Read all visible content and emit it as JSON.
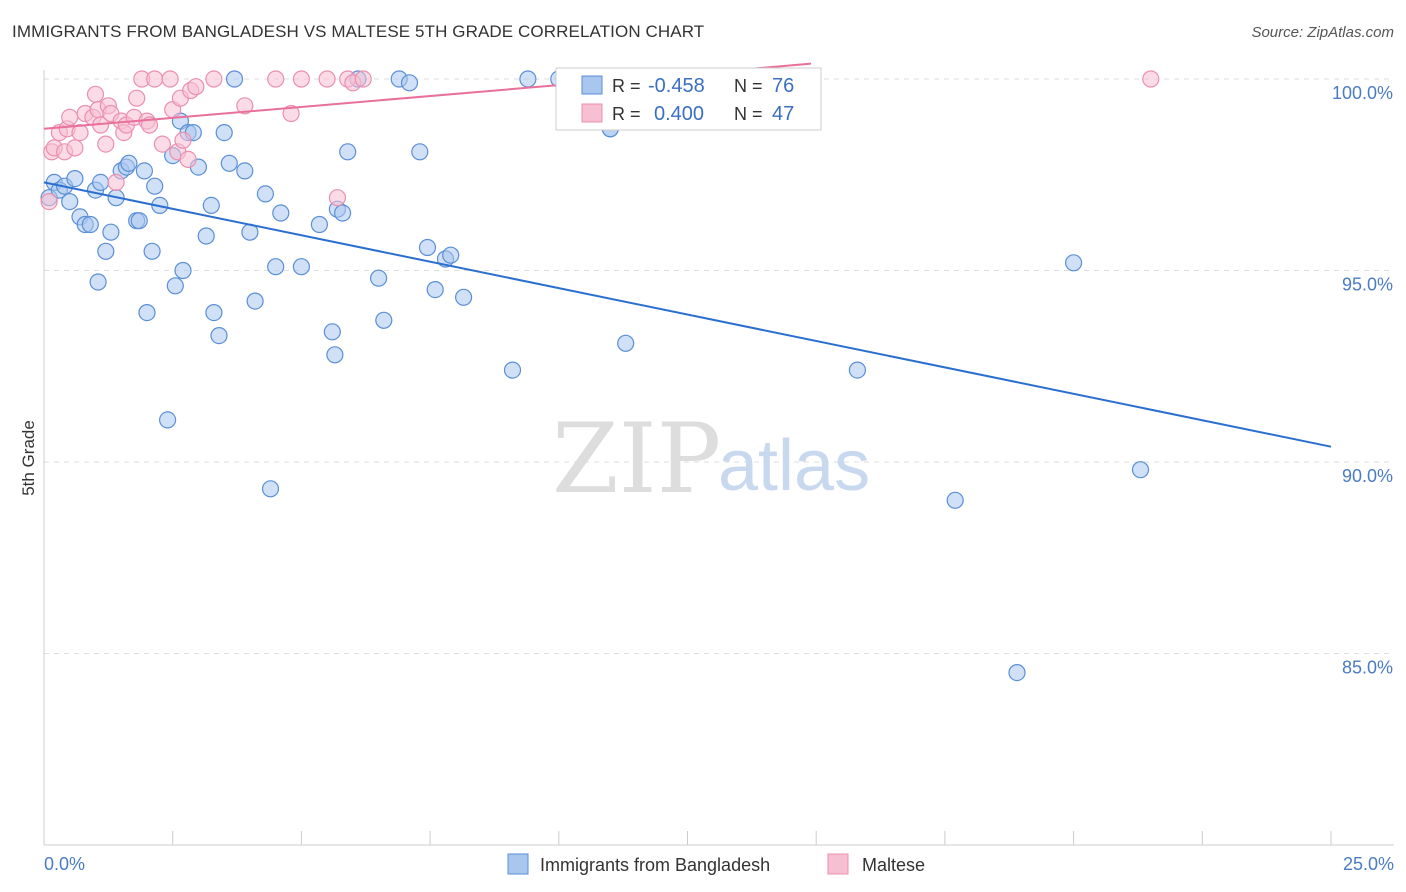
{
  "header": {
    "title": "IMMIGRANTS FROM BANGLADESH VS MALTESE 5TH GRADE CORRELATION CHART",
    "source": "Source: ZipAtlas.com"
  },
  "watermark": {
    "zip": "ZIP",
    "atlas": "atlas"
  },
  "colors": {
    "blue_fill": "#a9c6ee",
    "blue_stroke": "#5b8fd6",
    "blue_line": "#2a6fd0",
    "pink_fill": "#f7bfd2",
    "pink_stroke": "#eb8fb0",
    "pink_line": "#e8709a",
    "grid": "#dddddd",
    "tick_label": "#4a7cc4"
  },
  "stats_box": {
    "rows": [
      {
        "r_label": "R =",
        "r_value": "-0.458",
        "n_label": "N =",
        "n_value": "76"
      },
      {
        "r_label": "R =",
        "r_value": "0.400",
        "n_label": "N =",
        "n_value": "47"
      }
    ]
  },
  "chart_data": {
    "type": "scatter",
    "title": "IMMIGRANTS FROM BANGLADESH VS MALTESE 5TH GRADE CORRELATION CHART",
    "xlabel": "",
    "ylabel": "5th Grade",
    "xlim": [
      0,
      25
    ],
    "ylim": [
      80.5,
      100.8
    ],
    "x_tick_labels": [
      "0.0%",
      "25.0%"
    ],
    "y_ticks": [
      85,
      90,
      95,
      100
    ],
    "y_tick_labels": [
      "85.0%",
      "90.0%",
      "95.0%",
      "100.0%"
    ],
    "legend": [
      "Immigrants from Bangladesh",
      "Maltese"
    ],
    "series": [
      {
        "name": "Immigrants from Bangladesh",
        "color": "#5b8fd6",
        "trend": {
          "x": [
            0,
            25
          ],
          "y": [
            97.3,
            90.4
          ]
        },
        "points": [
          [
            0.1,
            96.9
          ],
          [
            0.2,
            97.3
          ],
          [
            0.3,
            97.1
          ],
          [
            0.4,
            97.2
          ],
          [
            0.5,
            96.8
          ],
          [
            0.6,
            97.4
          ],
          [
            0.7,
            96.4
          ],
          [
            0.8,
            96.2
          ],
          [
            0.9,
            96.2
          ],
          [
            1.0,
            97.1
          ],
          [
            1.05,
            94.7
          ],
          [
            1.1,
            97.3
          ],
          [
            1.2,
            95.5
          ],
          [
            1.3,
            96.0
          ],
          [
            1.4,
            96.9
          ],
          [
            1.5,
            97.6
          ],
          [
            1.6,
            97.7
          ],
          [
            1.65,
            97.8
          ],
          [
            1.8,
            96.3
          ],
          [
            1.85,
            96.3
          ],
          [
            1.95,
            97.6
          ],
          [
            2.0,
            93.9
          ],
          [
            2.1,
            95.5
          ],
          [
            2.15,
            97.2
          ],
          [
            2.25,
            96.7
          ],
          [
            2.4,
            91.1
          ],
          [
            2.5,
            98.0
          ],
          [
            2.55,
            94.6
          ],
          [
            2.65,
            98.9
          ],
          [
            2.7,
            95.0
          ],
          [
            2.8,
            98.6
          ],
          [
            2.9,
            98.6
          ],
          [
            3.0,
            97.7
          ],
          [
            3.15,
            95.9
          ],
          [
            3.25,
            96.7
          ],
          [
            3.3,
            93.9
          ],
          [
            3.4,
            93.3
          ],
          [
            3.5,
            98.6
          ],
          [
            3.6,
            97.8
          ],
          [
            3.9,
            97.6
          ],
          [
            4.0,
            96.0
          ],
          [
            4.1,
            94.2
          ],
          [
            4.3,
            97.0
          ],
          [
            4.4,
            89.3
          ],
          [
            4.5,
            95.1
          ],
          [
            4.6,
            96.5
          ],
          [
            5.0,
            95.1
          ],
          [
            5.35,
            96.2
          ],
          [
            5.6,
            93.4
          ],
          [
            5.65,
            92.8
          ],
          [
            5.7,
            96.6
          ],
          [
            5.8,
            96.5
          ],
          [
            5.9,
            98.1
          ],
          [
            6.1,
            100.0
          ],
          [
            6.5,
            94.8
          ],
          [
            6.6,
            93.7
          ],
          [
            6.9,
            100.0
          ],
          [
            7.1,
            99.9
          ],
          [
            7.3,
            98.1
          ],
          [
            7.45,
            95.6
          ],
          [
            7.6,
            94.5
          ],
          [
            7.8,
            95.3
          ],
          [
            7.9,
            95.4
          ],
          [
            8.15,
            94.3
          ],
          [
            9.1,
            92.4
          ],
          [
            9.4,
            100.0
          ],
          [
            10.0,
            100.0
          ],
          [
            11.0,
            98.7
          ],
          [
            11.0,
            98.7
          ],
          [
            11.3,
            93.1
          ],
          [
            15.8,
            92.4
          ],
          [
            17.7,
            89.0
          ],
          [
            18.9,
            84.5
          ],
          [
            20.0,
            95.2
          ],
          [
            21.3,
            89.8
          ],
          [
            3.7,
            100.0
          ]
        ]
      },
      {
        "name": "Maltese",
        "color": "#eb8fb0",
        "trend": {
          "x": [
            0,
            14.9
          ],
          "y": [
            98.7,
            100.4
          ]
        },
        "points": [
          [
            0.1,
            96.8
          ],
          [
            0.15,
            98.1
          ],
          [
            0.2,
            98.2
          ],
          [
            0.3,
            98.6
          ],
          [
            0.4,
            98.1
          ],
          [
            0.45,
            98.7
          ],
          [
            0.5,
            99.0
          ],
          [
            0.6,
            98.2
          ],
          [
            0.7,
            98.6
          ],
          [
            0.8,
            99.1
          ],
          [
            0.95,
            99.0
          ],
          [
            1.0,
            99.6
          ],
          [
            1.05,
            99.2
          ],
          [
            1.1,
            98.8
          ],
          [
            1.2,
            98.3
          ],
          [
            1.25,
            99.3
          ],
          [
            1.3,
            99.1
          ],
          [
            1.4,
            97.3
          ],
          [
            1.5,
            98.9
          ],
          [
            1.55,
            98.6
          ],
          [
            1.6,
            98.8
          ],
          [
            1.75,
            99.0
          ],
          [
            1.8,
            99.5
          ],
          [
            1.9,
            100.0
          ],
          [
            2.0,
            98.9
          ],
          [
            2.05,
            98.8
          ],
          [
            2.15,
            100.0
          ],
          [
            2.3,
            98.3
          ],
          [
            2.45,
            100.0
          ],
          [
            2.5,
            99.2
          ],
          [
            2.6,
            98.1
          ],
          [
            2.65,
            99.5
          ],
          [
            2.7,
            98.4
          ],
          [
            2.8,
            97.9
          ],
          [
            2.85,
            99.7
          ],
          [
            2.95,
            99.8
          ],
          [
            3.3,
            100.0
          ],
          [
            3.9,
            99.3
          ],
          [
            4.5,
            100.0
          ],
          [
            4.8,
            99.1
          ],
          [
            5.0,
            100.0
          ],
          [
            5.5,
            100.0
          ],
          [
            5.7,
            96.9
          ],
          [
            5.9,
            100.0
          ],
          [
            6.0,
            99.9
          ],
          [
            6.2,
            100.0
          ],
          [
            21.5,
            100.0
          ]
        ]
      }
    ]
  },
  "legend_bottom": {
    "items": [
      "Immigrants from Bangladesh",
      "Maltese"
    ]
  }
}
